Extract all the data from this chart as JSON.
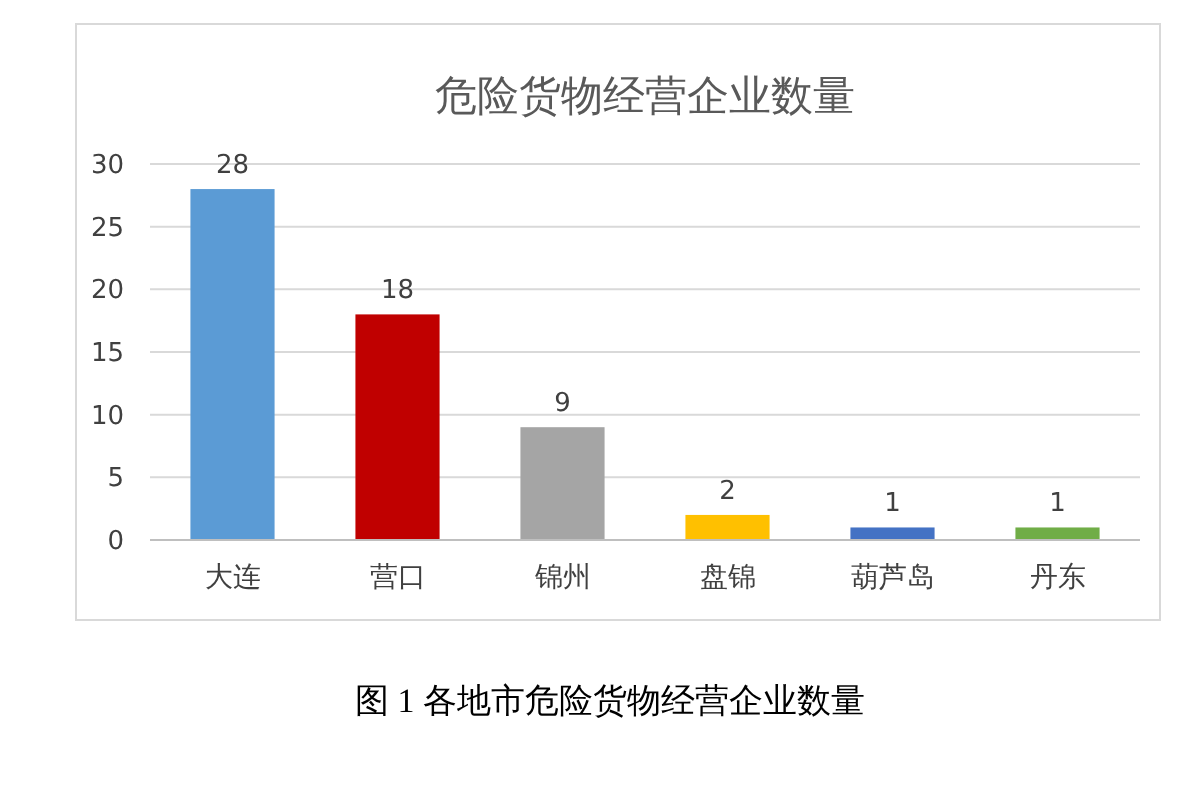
{
  "chart_data": {
    "type": "bar",
    "title": "危险货物经营企业数量",
    "categories": [
      "大连",
      "营口",
      "锦州",
      "盘锦",
      "葫芦岛",
      "丹东"
    ],
    "values": [
      28,
      18,
      9,
      2,
      1,
      1
    ],
    "colors": [
      "#5b9bd5",
      "#c00000",
      "#a5a5a5",
      "#ffc000",
      "#4472c4",
      "#70ad47"
    ],
    "ylim": [
      0,
      30
    ],
    "yticks": [
      0,
      5,
      10,
      15,
      20,
      25,
      30
    ],
    "grid": "y",
    "data_labels": true,
    "annotations": [
      "图 1 各地市危险货物经营企业数量"
    ]
  }
}
